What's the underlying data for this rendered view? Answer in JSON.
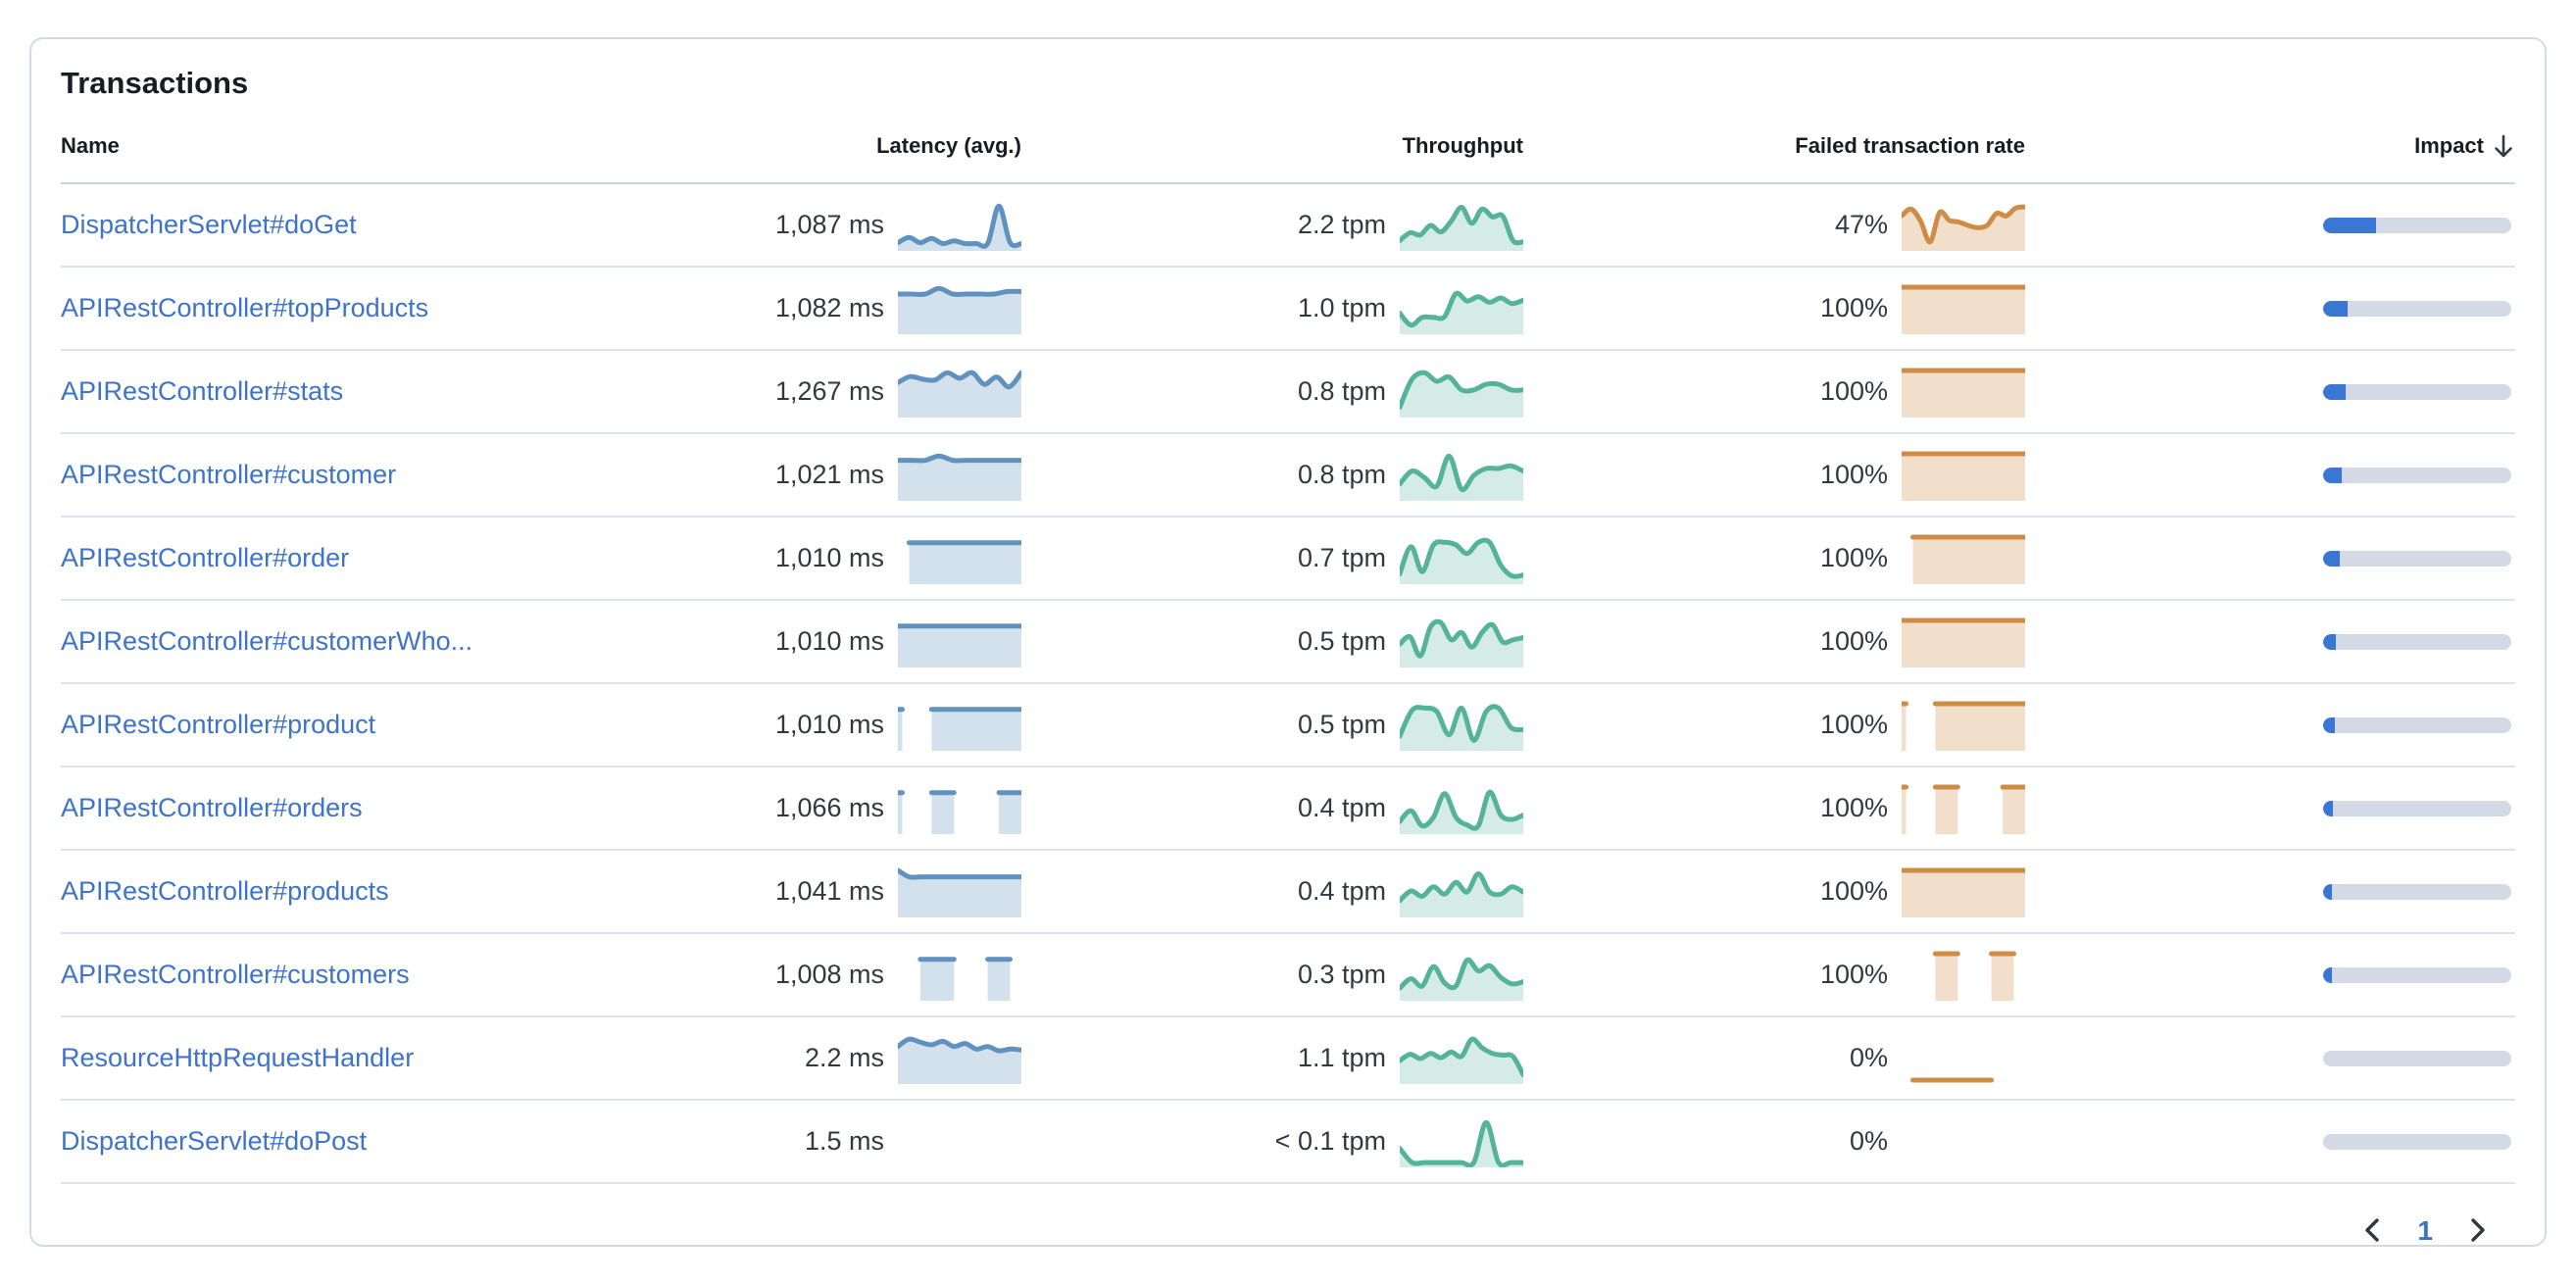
{
  "panel": {
    "title": "Transactions"
  },
  "table": {
    "columns": [
      {
        "label": "Name"
      },
      {
        "label": "Latency (avg.)"
      },
      {
        "label": "Throughput"
      },
      {
        "label": "Failed transaction rate"
      },
      {
        "label": "Impact",
        "sort_direction": "desc"
      }
    ],
    "rows": [
      {
        "name": "DispatcherServlet#doGet",
        "latency_value": "1,087 ms",
        "latency_spark": [
          0.1,
          0.22,
          0.1,
          0.2,
          0.08,
          0.14,
          0.08,
          0.08,
          0.08,
          0.95,
          0.1,
          0.08
        ],
        "throughput_value": "2.2 tpm",
        "throughput_spark": [
          0.15,
          0.33,
          0.28,
          0.5,
          0.35,
          0.6,
          0.92,
          0.55,
          0.88,
          0.7,
          0.72,
          0.15,
          0.12
        ],
        "failed_value": "47%",
        "failed_spark": [
          0.72,
          0.88,
          0.6,
          0.12,
          0.8,
          0.62,
          0.58,
          0.5,
          0.45,
          0.5,
          0.78,
          0.72,
          0.9,
          0.93
        ],
        "impact_pct": 28
      },
      {
        "name": "APIRestController#topProducts",
        "latency_value": "1,082 ms",
        "latency_spark": [
          0.84,
          0.84,
          0.84,
          0.97,
          0.84,
          0.84,
          0.84,
          0.84,
          0.9,
          0.9
        ],
        "throughput_value": "1.0 tpm",
        "throughput_spark": [
          0.4,
          0.12,
          0.3,
          0.3,
          0.32,
          0.85,
          0.68,
          0.78,
          0.65,
          0.75,
          0.62,
          0.7
        ],
        "failed_value": "100%",
        "failed_spark": [
          1,
          1,
          1,
          1,
          1,
          1,
          1,
          1,
          1,
          1,
          1,
          1
        ],
        "impact_pct": 13
      },
      {
        "name": "APIRestController#stats",
        "latency_value": "1,267 ms",
        "latency_spark": [
          0.72,
          0.86,
          0.8,
          0.78,
          0.95,
          0.82,
          0.95,
          0.68,
          0.85,
          0.62,
          0.95
        ],
        "throughput_value": "0.8 tpm",
        "throughput_spark": [
          0.15,
          0.8,
          0.95,
          0.75,
          0.85,
          0.55,
          0.55,
          0.68,
          0.68,
          0.55,
          0.55
        ],
        "failed_value": "100%",
        "failed_spark": [
          1,
          1,
          1,
          1,
          1,
          1,
          1,
          1,
          1,
          1,
          1,
          1
        ],
        "impact_pct": 12
      },
      {
        "name": "APIRestController#customer",
        "latency_value": "1,021 ms",
        "latency_spark": [
          0.85,
          0.85,
          0.85,
          0.95,
          0.85,
          0.85,
          0.85,
          0.85,
          0.85,
          0.85
        ],
        "throughput_value": "0.8 tpm",
        "throughput_spark": [
          0.3,
          0.6,
          0.45,
          0.25,
          0.95,
          0.18,
          0.5,
          0.66,
          0.66,
          0.72,
          0.6
        ],
        "failed_value": "100%",
        "failed_spark": [
          1,
          1,
          1,
          1,
          1,
          1,
          1,
          1,
          1,
          1,
          1,
          1
        ],
        "impact_pct": 10
      },
      {
        "name": "APIRestController#order",
        "latency_value": "1,010 ms",
        "latency_spark": [
          null,
          0.87,
          0.87,
          0.87,
          0.87,
          0.87,
          0.87,
          0.87,
          0.87,
          0.87,
          0.87,
          0.87
        ],
        "throughput_value": "0.7 tpm",
        "throughput_spark": [
          0.15,
          0.78,
          0.2,
          0.82,
          0.88,
          0.82,
          0.62,
          0.88,
          0.88,
          0.35,
          0.1,
          0.12
        ],
        "failed_value": "100%",
        "failed_spark": [
          null,
          1,
          1,
          1,
          1,
          1,
          1,
          1,
          1,
          1,
          1,
          1
        ],
        "impact_pct": 9
      },
      {
        "name": "APIRestController#customerWho...",
        "latency_value": "1,010 ms",
        "latency_spark": [
          0.87,
          0.87,
          0.87,
          0.87,
          0.87,
          0.87,
          0.87,
          0.87,
          0.87,
          0.87,
          0.87,
          0.87
        ],
        "throughput_value": "0.5 tpm",
        "throughput_spark": [
          0.45,
          0.62,
          0.18,
          0.85,
          0.95,
          0.55,
          0.72,
          0.38,
          0.72,
          0.9,
          0.5,
          0.55,
          0.6
        ],
        "failed_value": "100%",
        "failed_spark": [
          1,
          1,
          1,
          1,
          1,
          1,
          1,
          1,
          1,
          1,
          1,
          1
        ],
        "impact_pct": 7
      },
      {
        "name": "APIRestController#product",
        "latency_value": "1,010 ms",
        "latency_spark": [
          0.87,
          null,
          null,
          0.87,
          0.87,
          0.87,
          0.87,
          0.87,
          0.87,
          0.87,
          0.87,
          0.87
        ],
        "throughput_value": "0.5 tpm",
        "throughput_spark": [
          0.25,
          0.85,
          0.9,
          0.82,
          0.28,
          0.9,
          0.15,
          0.82,
          0.9,
          0.45,
          0.4
        ],
        "failed_value": "100%",
        "failed_spark": [
          1,
          null,
          null,
          1,
          1,
          1,
          1,
          1,
          1,
          1,
          1,
          1
        ],
        "impact_pct": 6
      },
      {
        "name": "APIRestController#orders",
        "latency_value": "1,066 ms",
        "latency_spark": [
          0.87,
          null,
          null,
          0.87,
          0.87,
          0.87,
          null,
          null,
          null,
          0.87,
          0.87,
          0.87
        ],
        "throughput_value": "0.4 tpm",
        "throughput_spark": [
          0.2,
          0.45,
          0.1,
          0.3,
          0.85,
          0.3,
          0.12,
          0.1,
          0.88,
          0.35,
          0.25,
          0.35
        ],
        "failed_value": "100%",
        "failed_spark": [
          1,
          null,
          null,
          1,
          1,
          1,
          null,
          null,
          null,
          1,
          1,
          1
        ],
        "impact_pct": 5
      },
      {
        "name": "APIRestController#products",
        "latency_value": "1,041 ms",
        "latency_spark": [
          1,
          0.85,
          0.85,
          0.85,
          0.85,
          0.85,
          0.85,
          0.85,
          0.85,
          0.85,
          0.85,
          0.85
        ],
        "throughput_value": "0.4 tpm",
        "throughput_spark": [
          0.3,
          0.52,
          0.4,
          0.62,
          0.45,
          0.72,
          0.5,
          0.92,
          0.5,
          0.45,
          0.62,
          0.5
        ],
        "failed_value": "100%",
        "failed_spark": [
          1,
          1,
          1,
          1,
          1,
          1,
          1,
          1,
          1,
          1,
          1,
          1
        ],
        "impact_pct": 4
      },
      {
        "name": "APIRestController#customers",
        "latency_value": "1,008 ms",
        "latency_spark": [
          null,
          null,
          0.87,
          0.87,
          0.87,
          0.87,
          null,
          null,
          0.87,
          0.87,
          0.87,
          null
        ],
        "throughput_value": "0.3 tpm",
        "throughput_spark": [
          0.2,
          0.42,
          0.25,
          0.7,
          0.32,
          0.25,
          0.85,
          0.6,
          0.72,
          0.45,
          0.3,
          0.35
        ],
        "failed_value": "100%",
        "failed_spark": [
          null,
          null,
          null,
          1,
          1,
          1,
          null,
          null,
          1,
          1,
          1,
          null
        ],
        "impact_pct": 4
      },
      {
        "name": "ResourceHttpRequestHandler",
        "latency_value": "2.2 ms",
        "latency_spark": [
          0.78,
          0.95,
          0.88,
          0.82,
          0.9,
          0.78,
          0.85,
          0.72,
          0.78,
          0.68,
          0.72,
          0.7
        ],
        "throughput_value": "1.1 tpm",
        "throughput_spark": [
          0.45,
          0.6,
          0.5,
          0.62,
          0.52,
          0.65,
          0.55,
          0.95,
          0.75,
          0.62,
          0.58,
          0.55,
          0.12
        ],
        "failed_value": "0%",
        "failed_spark": [
          null,
          0,
          0,
          0,
          0,
          0,
          0,
          0,
          0,
          null,
          null,
          null
        ],
        "impact_pct": 0
      },
      {
        "name": "DispatcherServlet#doPost",
        "latency_value": "1.5 ms",
        "latency_spark": [],
        "throughput_value": "< 0.1 tpm",
        "throughput_spark": [
          0.35,
          0.02,
          0.02,
          0.02,
          0.02,
          0.02,
          0.02,
          0.95,
          0.02,
          0.02,
          0.02
        ],
        "failed_value": "0%",
        "failed_spark": [],
        "impact_pct": 0
      }
    ]
  },
  "pagination": {
    "current_page": "1",
    "prev_icon": "chevron-left",
    "next_icon": "chevron-right"
  },
  "colors": {
    "link": "#3d73c9",
    "latency_line": "#6092c0",
    "latency_fill": "rgba(96,146,192,0.28)",
    "throughput_line": "#54b399",
    "throughput_fill": "rgba(84,179,153,0.25)",
    "failed_line": "#cf8c46",
    "failed_fill": "rgba(207,140,70,0.28)",
    "impact_fill": "#3a76d3",
    "impact_track": "#d3dae6"
  }
}
